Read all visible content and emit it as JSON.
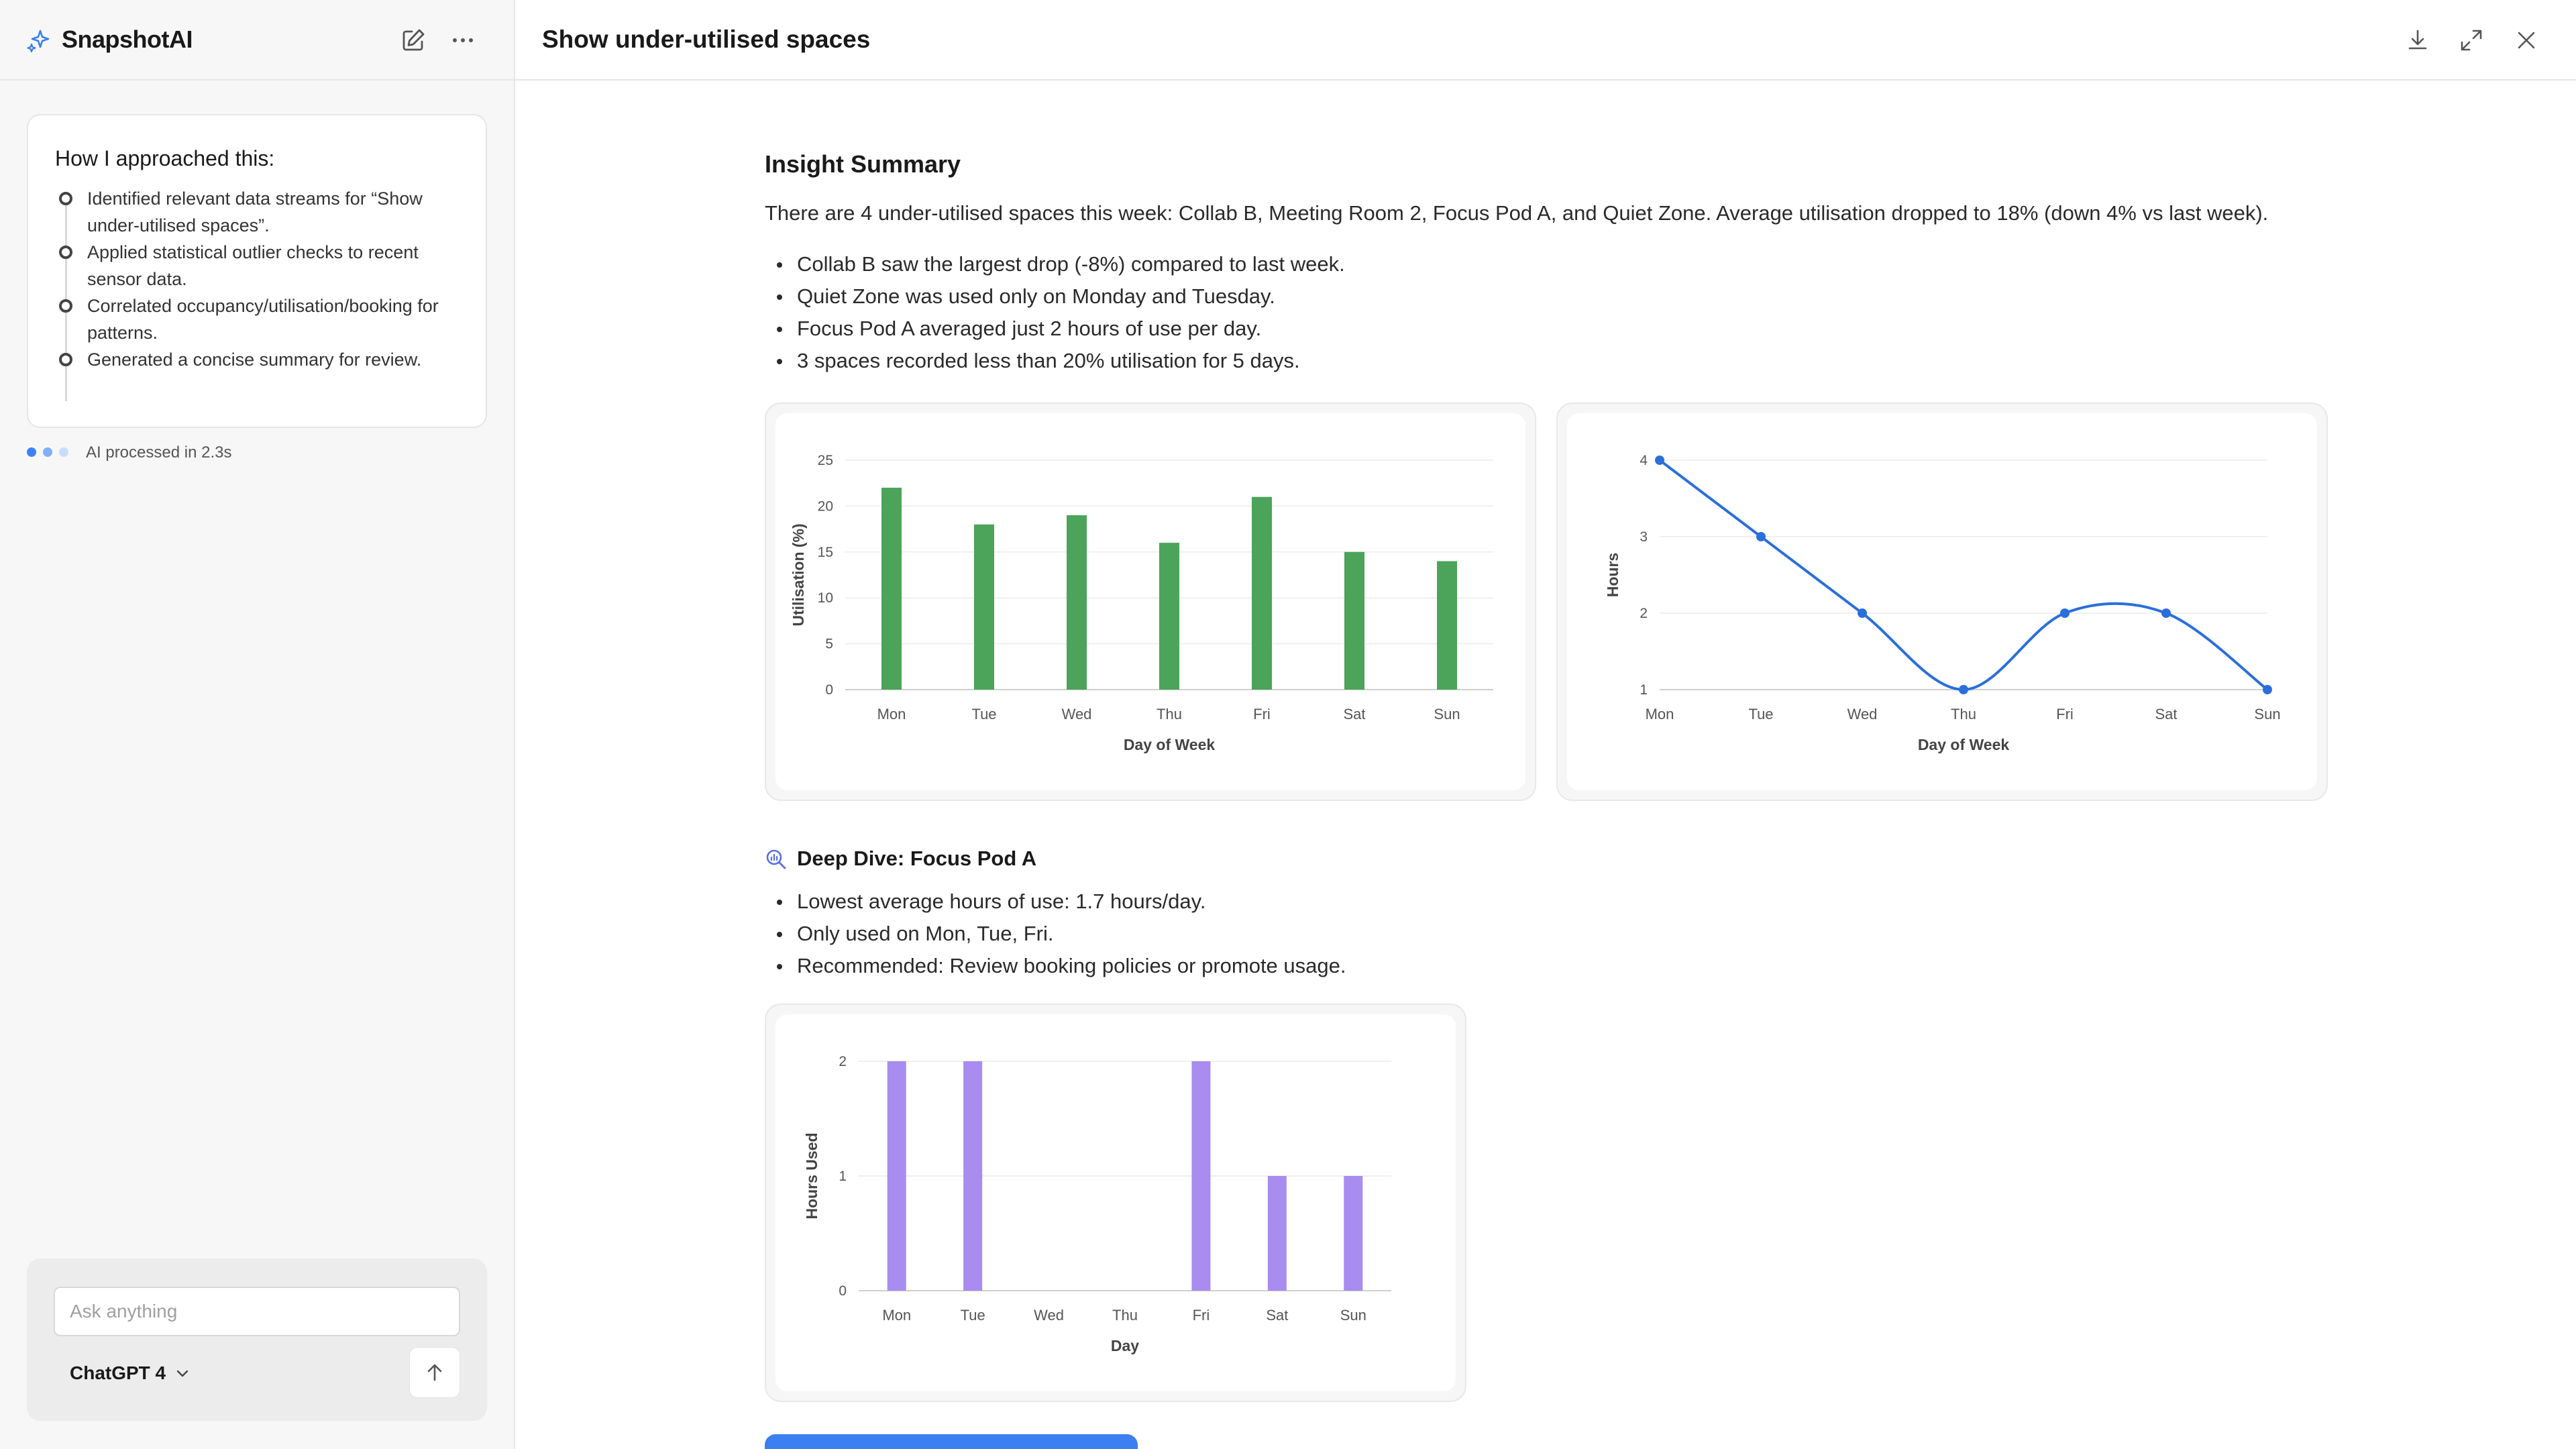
{
  "sidebar": {
    "app_title": "SnapshotAI",
    "approach": {
      "title": "How I approached this:",
      "steps": [
        "Identified relevant data streams for “Show under-utilised spaces”.",
        "Applied statistical outlier checks to recent sensor data.",
        "Correlated occupancy/utilisation/booking for patterns.",
        "Generated a concise summary for review."
      ]
    },
    "status": "AI processed in 2.3s",
    "composer": {
      "placeholder": "Ask anything",
      "model": "ChatGPT 4"
    }
  },
  "main": {
    "title": "Show under-utilised spaces",
    "insight": {
      "heading": "Insight Summary",
      "summary": "There are 4 under-utilised spaces this week: Collab B, Meeting Room 2, Focus Pod A, and Quiet Zone. Average utilisation dropped to 18% (down 4% vs last week).",
      "bullets": [
        "Collab B saw the largest drop (-8%) compared to last week.",
        "Quiet Zone was used only on Monday and Tuesday.",
        "Focus Pod A averaged just 2 hours of use per day.",
        "3 spaces recorded less than 20% utilisation for 5 days."
      ]
    },
    "deep_dive": {
      "heading": "Deep Dive: Focus Pod A",
      "bullets": [
        "Lowest average hours of use: 1.7 hours/day.",
        "Only used on Mon, Tue, Fri.",
        "Recommended: Review booking policies or promote usage."
      ]
    }
  },
  "colors": {
    "accent": "#3b7ff0",
    "green_bar": "#4ca35a",
    "line_blue": "#2a6fdb",
    "purple_bar": "#a88cf0",
    "status_dots": [
      "#3b82f6",
      "#7fb0f8",
      "#c9dcfb"
    ]
  },
  "chart_data": [
    {
      "type": "bar",
      "categories": [
        "Mon",
        "Tue",
        "Wed",
        "Thu",
        "Fri",
        "Sat",
        "Sun"
      ],
      "values": [
        22,
        18,
        19,
        16,
        21,
        15,
        14
      ],
      "xlabel": "Day of Week",
      "ylabel": "Utilisation (%)",
      "ylim": [
        0,
        25
      ],
      "yticks": [
        0,
        5,
        10,
        15,
        20,
        25
      ],
      "grid": true
    },
    {
      "type": "line",
      "categories": [
        "Mon",
        "Tue",
        "Wed",
        "Thu",
        "Fri",
        "Sat",
        "Sun"
      ],
      "values": [
        4,
        3,
        2,
        1,
        2,
        2,
        1
      ],
      "xlabel": "Day of Week",
      "ylabel": "Hours",
      "ylim": [
        1,
        4
      ],
      "yticks": [
        1,
        2,
        3,
        4
      ],
      "grid": true
    },
    {
      "type": "bar",
      "categories": [
        "Mon",
        "Tue",
        "Wed",
        "Thu",
        "Fri",
        "Sat",
        "Sun"
      ],
      "values": [
        2,
        2,
        0,
        0,
        2,
        1,
        1
      ],
      "xlabel": "Day",
      "ylabel": "Hours Used",
      "ylim": [
        0,
        2
      ],
      "yticks": [
        0,
        1,
        2
      ],
      "grid": true
    }
  ]
}
